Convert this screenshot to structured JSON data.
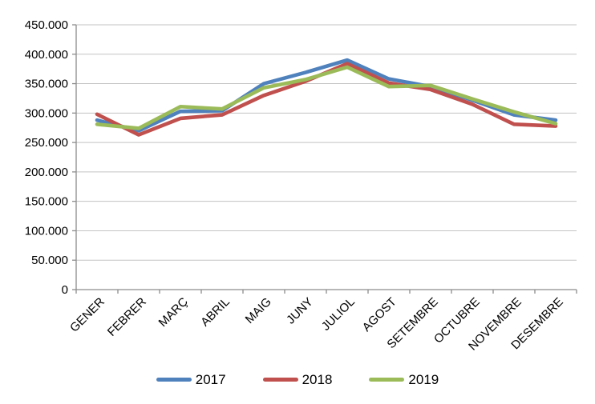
{
  "chart_data": {
    "type": "line",
    "title": "",
    "xlabel": "",
    "ylabel": "",
    "categories": [
      "GENER",
      "FEBRER",
      "MARÇ",
      "ABRIL",
      "MAIG",
      "JUNY",
      "JULIOL",
      "AGOST",
      "SETEMBRE",
      "OCTUBRE",
      "NOVEMBRE",
      "DESEMBRE"
    ],
    "series": [
      {
        "name": "2017",
        "color": "#4F81BD",
        "values": [
          288000,
          270000,
          303000,
          304000,
          350000,
          369000,
          390000,
          358000,
          345000,
          322000,
          297000,
          288000
        ]
      },
      {
        "name": "2018",
        "color": "#C0504D",
        "values": [
          298000,
          263000,
          291000,
          297000,
          330000,
          354000,
          384000,
          351000,
          340000,
          315000,
          281000,
          278000
        ]
      },
      {
        "name": "2019",
        "color": "#9BBB59",
        "values": [
          281000,
          274000,
          311000,
          307000,
          343000,
          357000,
          378000,
          345000,
          347000,
          324000,
          302000,
          282000
        ]
      }
    ],
    "y_axis": {
      "min": 0,
      "max": 450000,
      "step": 50000,
      "tick_labels": [
        "0",
        "50.000",
        "100.000",
        "150.000",
        "200.000",
        "250.000",
        "300.000",
        "350.000",
        "400.000",
        "450.000"
      ]
    },
    "grid": true,
    "legend_position": "bottom"
  },
  "legend": {
    "items": [
      "2017",
      "2018",
      "2019"
    ]
  },
  "colors": {
    "background": "#FFFFFF",
    "gridline": "#C3C3C3",
    "axis": "#8C8C8C",
    "text": "#000000"
  }
}
